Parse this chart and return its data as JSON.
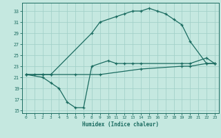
{
  "xlabel": "Humidex (Indice chaleur)",
  "bg_color": "#c5e8e0",
  "grid_color": "#9ecec6",
  "line_color": "#1a6b60",
  "xlim": [
    -0.5,
    23.5
  ],
  "ylim": [
    14.5,
    34.5
  ],
  "xticks": [
    0,
    1,
    2,
    3,
    4,
    5,
    6,
    7,
    8,
    9,
    10,
    11,
    12,
    13,
    14,
    15,
    16,
    17,
    18,
    19,
    20,
    21,
    22,
    23
  ],
  "yticks": [
    15,
    17,
    19,
    21,
    23,
    25,
    27,
    29,
    31,
    33
  ],
  "line1_x": [
    0,
    2,
    3,
    8,
    9,
    11,
    12,
    13,
    14,
    15,
    16,
    17,
    18,
    19,
    20,
    22,
    23
  ],
  "line1_y": [
    21.5,
    21.5,
    21.5,
    29.0,
    31.0,
    32.0,
    32.5,
    33.0,
    33.0,
    33.5,
    33.0,
    32.5,
    31.5,
    30.5,
    27.5,
    23.5,
    23.5
  ],
  "line2_x": [
    0,
    2,
    3,
    4,
    5,
    6,
    7,
    8,
    10,
    11,
    12,
    13,
    14,
    19,
    20,
    22,
    23
  ],
  "line2_y": [
    21.5,
    21.0,
    20.0,
    19.0,
    16.5,
    15.5,
    15.5,
    23.0,
    24.0,
    23.5,
    23.5,
    23.5,
    23.5,
    23.5,
    23.5,
    24.5,
    23.5
  ],
  "line3_x": [
    0,
    1,
    2,
    3,
    6,
    9,
    14,
    19,
    20,
    22,
    23
  ],
  "line3_y": [
    21.5,
    21.5,
    21.5,
    21.5,
    21.5,
    21.5,
    22.5,
    23.0,
    23.0,
    23.5,
    23.5
  ]
}
